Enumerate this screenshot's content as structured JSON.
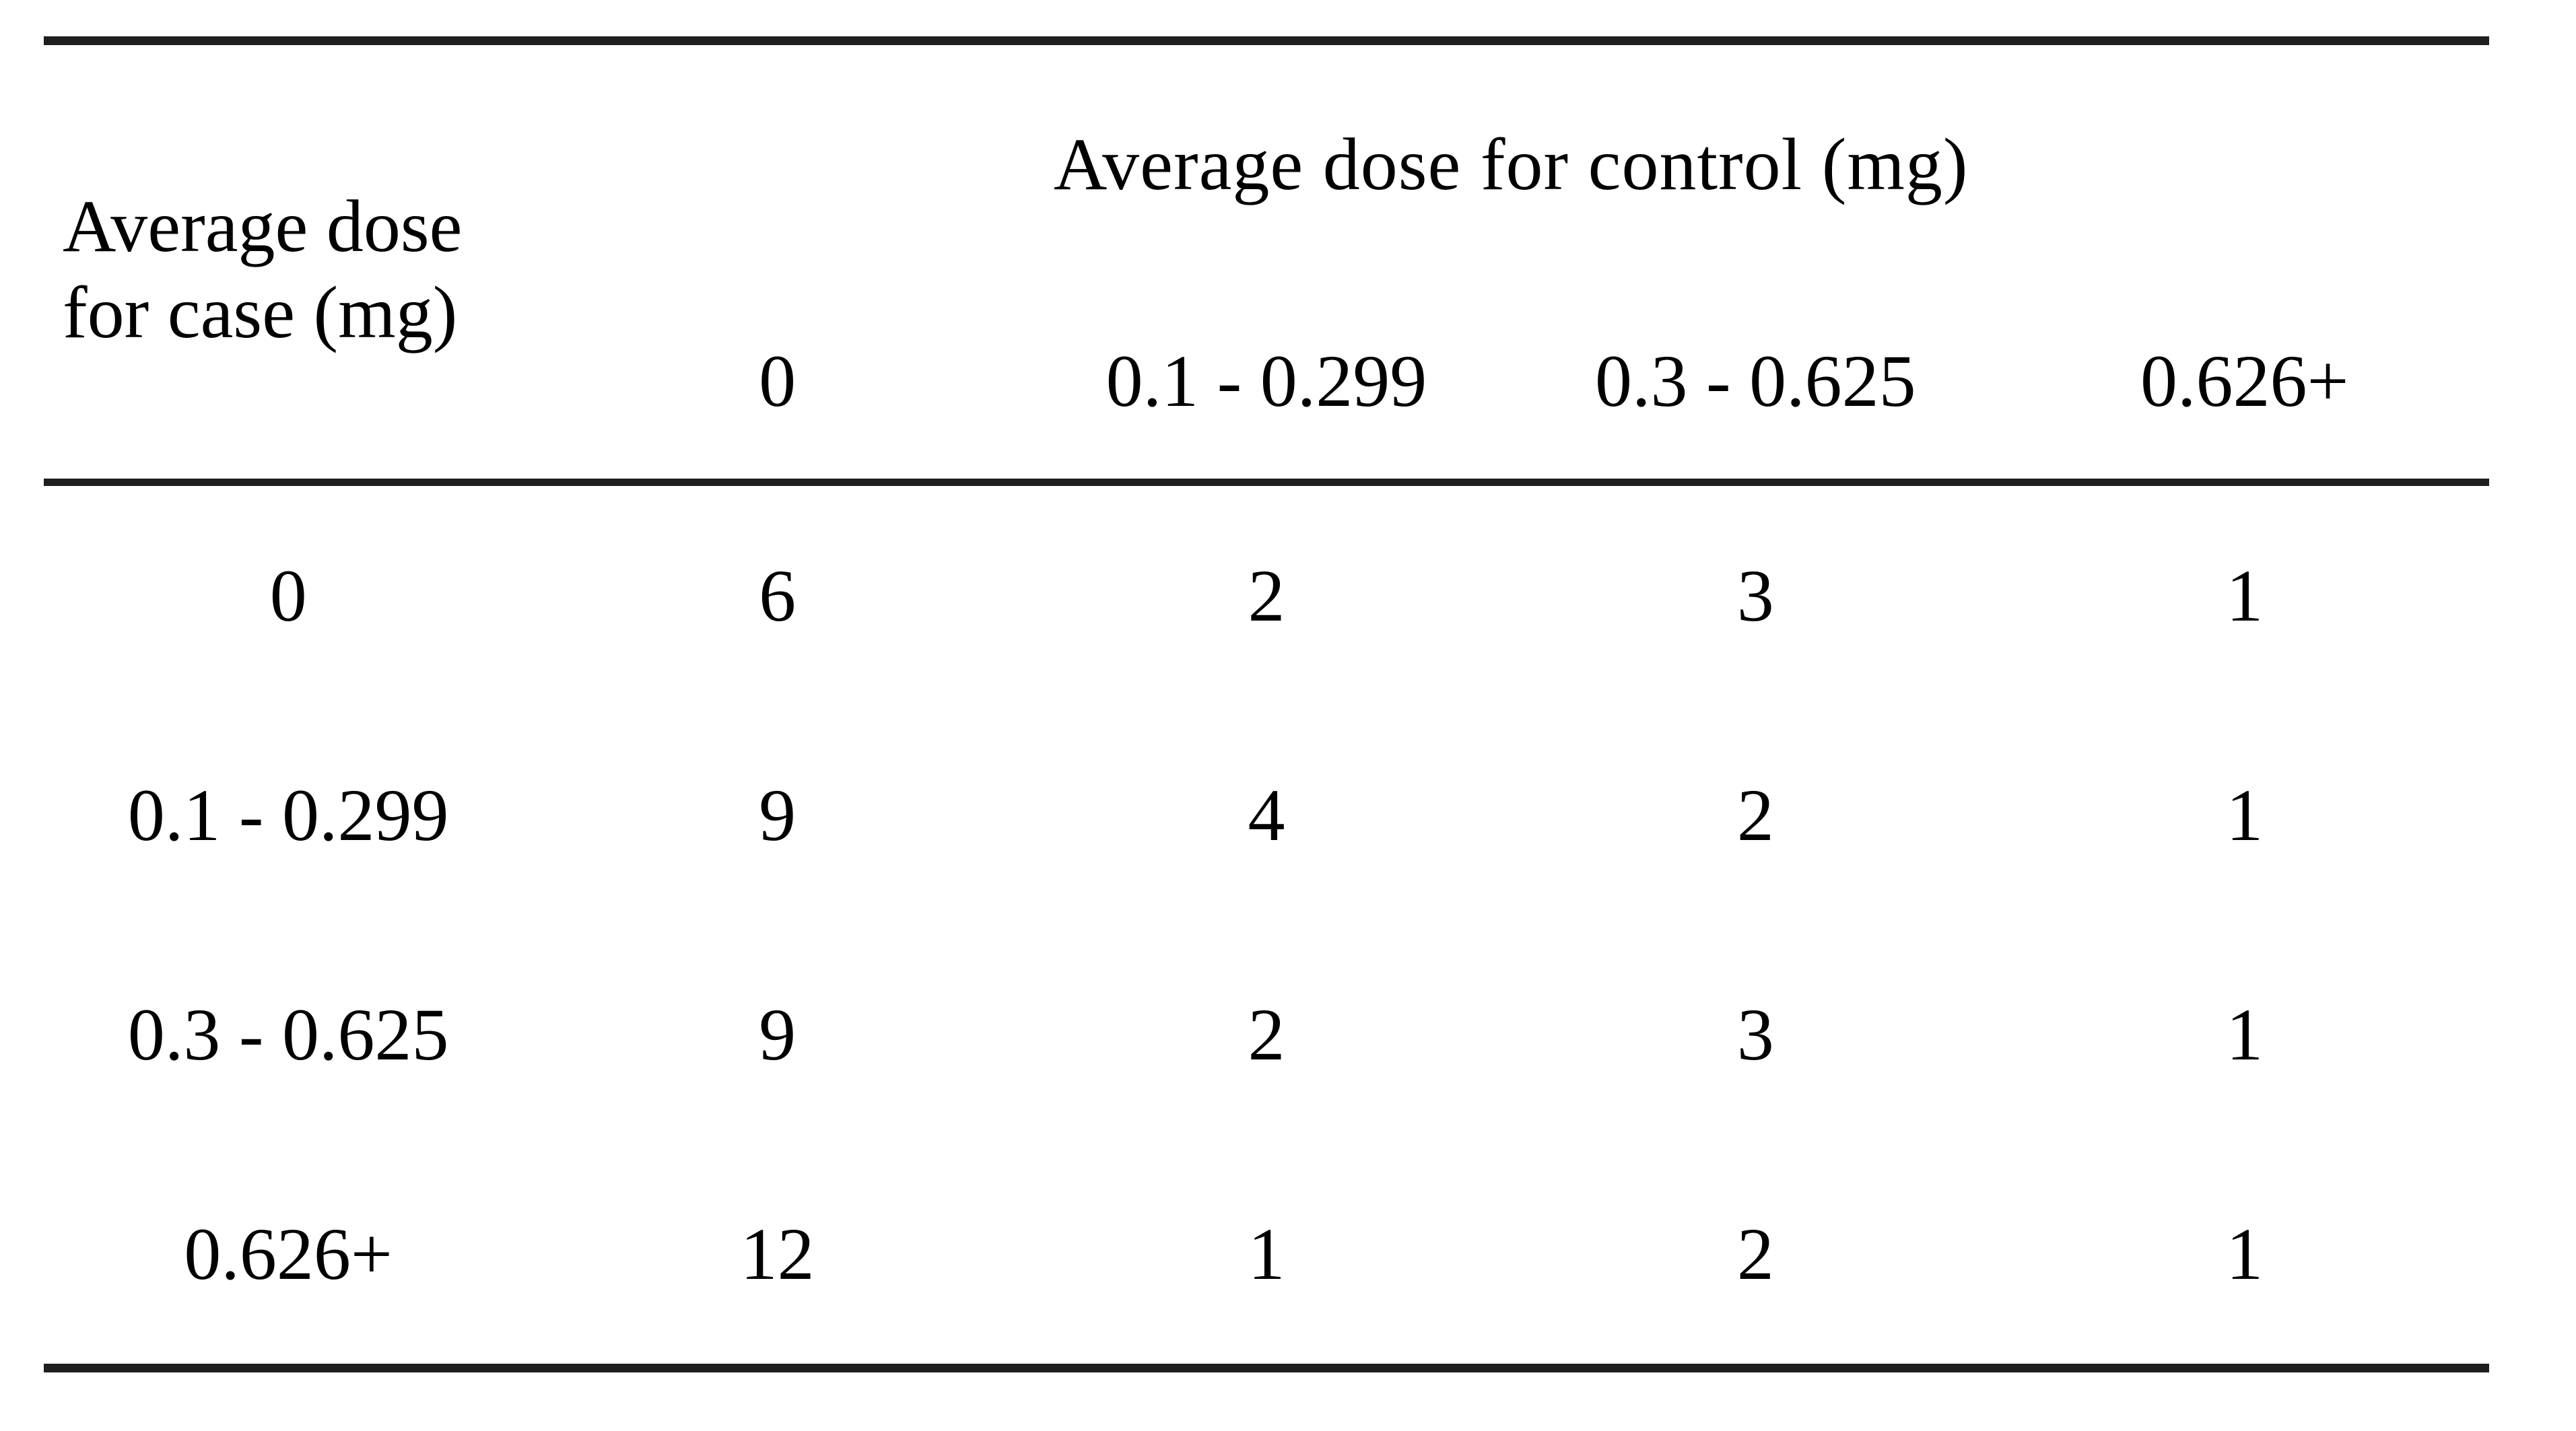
{
  "table": {
    "row_axis": {
      "line1": "Average dose",
      "line2": "for case (mg)"
    },
    "col_axis_label": "Average dose for control (mg)",
    "col_headers": [
      "0",
      "0.1 - 0.299",
      "0.3 - 0.625",
      "0.626+"
    ],
    "rows": [
      {
        "label": "0",
        "values": [
          "6",
          "2",
          "3",
          "1"
        ]
      },
      {
        "label": "0.1 - 0.299",
        "values": [
          "9",
          "4",
          "2",
          "1"
        ]
      },
      {
        "label": "0.3 - 0.625",
        "values": [
          "9",
          "2",
          "3",
          "1"
        ]
      },
      {
        "label": "0.626+",
        "values": [
          "12",
          "1",
          "2",
          "1"
        ]
      }
    ]
  },
  "colors": {
    "background": "#ffffff",
    "text": "#000000",
    "rule": "#1f1f1f"
  }
}
